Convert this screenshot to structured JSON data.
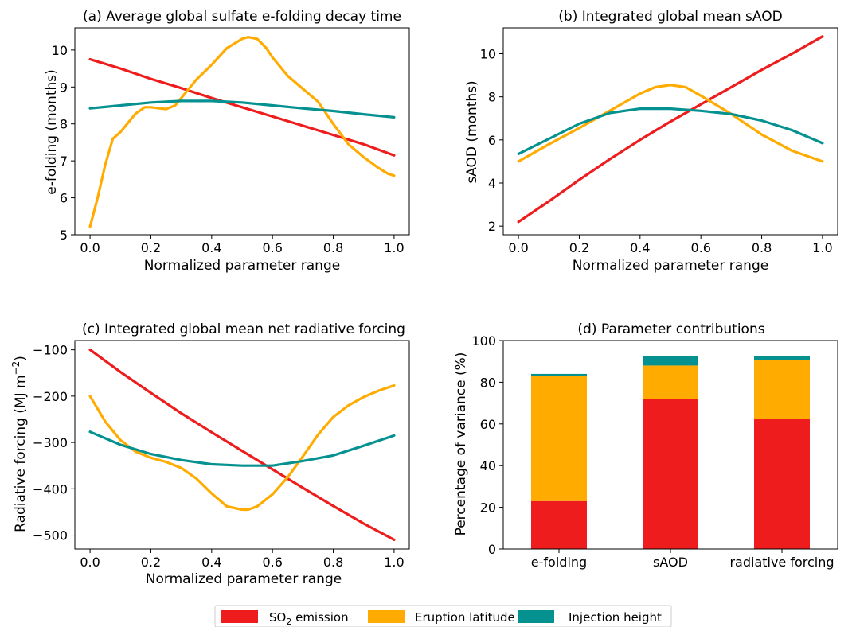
{
  "colors": {
    "so2": "#ee1c1c",
    "latitude": "#ffab00",
    "height": "#069191"
  },
  "legend": {
    "items": [
      {
        "key": "so2",
        "label_main": "SO",
        "label_sub": "2",
        "label_rest": " emission"
      },
      {
        "key": "latitude",
        "label": "Eruption latitude"
      },
      {
        "key": "height",
        "label": "Injection height"
      }
    ],
    "placement": "bottom-center"
  },
  "chart_data": [
    {
      "type": "line",
      "title": "(a) Average global sulfate e-folding decay time",
      "xlabel": "Normalized parameter range",
      "ylabel": "e-folding (months)",
      "xlim": [
        -0.05,
        1.05
      ],
      "ylim": [
        5,
        10.6
      ],
      "xticks": [
        0.0,
        0.2,
        0.4,
        0.6,
        0.8,
        1.0
      ],
      "xtick_labels": [
        "0.0",
        "0.2",
        "0.4",
        "0.6",
        "0.8",
        "1.0"
      ],
      "yticks": [
        5,
        6,
        7,
        8,
        9,
        10
      ],
      "ytick_labels": [
        "5",
        "6",
        "7",
        "8",
        "9",
        "10"
      ],
      "grid": false,
      "series": [
        {
          "key": "so2",
          "x": [
            0.0,
            0.1,
            0.2,
            0.3,
            0.4,
            0.5,
            0.6,
            0.7,
            0.8,
            0.9,
            1.0
          ],
          "y": [
            9.75,
            9.5,
            9.22,
            8.97,
            8.7,
            8.45,
            8.2,
            7.95,
            7.7,
            7.45,
            7.15
          ]
        },
        {
          "key": "latitude",
          "x": [
            0.0,
            0.025,
            0.05,
            0.075,
            0.1,
            0.15,
            0.18,
            0.2,
            0.25,
            0.28,
            0.3,
            0.35,
            0.4,
            0.45,
            0.5,
            0.52,
            0.55,
            0.58,
            0.6,
            0.65,
            0.7,
            0.75,
            0.8,
            0.85,
            0.9,
            0.95,
            0.98,
            1.0
          ],
          "y": [
            5.22,
            6.0,
            6.9,
            7.6,
            7.78,
            8.28,
            8.45,
            8.45,
            8.4,
            8.5,
            8.7,
            9.2,
            9.6,
            10.05,
            10.3,
            10.35,
            10.3,
            10.05,
            9.8,
            9.3,
            8.95,
            8.6,
            8.0,
            7.45,
            7.1,
            6.8,
            6.65,
            6.6
          ]
        },
        {
          "key": "height",
          "x": [
            0.0,
            0.1,
            0.2,
            0.3,
            0.4,
            0.5,
            0.6,
            0.7,
            0.8,
            0.9,
            1.0
          ],
          "y": [
            8.42,
            8.5,
            8.58,
            8.62,
            8.62,
            8.58,
            8.5,
            8.42,
            8.35,
            8.26,
            8.18
          ]
        }
      ]
    },
    {
      "type": "line",
      "title": "(b) Integrated global mean sAOD",
      "xlabel": "Normalized parameter range",
      "ylabel": "sAOD (months)",
      "xlim": [
        -0.05,
        1.05
      ],
      "ylim": [
        1.6,
        11.2
      ],
      "xticks": [
        0.0,
        0.2,
        0.4,
        0.6,
        0.8,
        1.0
      ],
      "xtick_labels": [
        "0.0",
        "0.2",
        "0.4",
        "0.6",
        "0.8",
        "1.0"
      ],
      "yticks": [
        2,
        4,
        6,
        8,
        10
      ],
      "ytick_labels": [
        "2",
        "4",
        "6",
        "8",
        "10"
      ],
      "grid": false,
      "series": [
        {
          "key": "so2",
          "x": [
            0.0,
            0.1,
            0.2,
            0.3,
            0.4,
            0.5,
            0.6,
            0.7,
            0.8,
            0.9,
            1.0
          ],
          "y": [
            2.2,
            3.15,
            4.15,
            5.1,
            6.0,
            6.85,
            7.65,
            8.45,
            9.25,
            10.0,
            10.8
          ]
        },
        {
          "key": "latitude",
          "x": [
            0.0,
            0.1,
            0.2,
            0.3,
            0.4,
            0.45,
            0.5,
            0.55,
            0.6,
            0.7,
            0.8,
            0.9,
            1.0
          ],
          "y": [
            5.0,
            5.8,
            6.55,
            7.35,
            8.15,
            8.45,
            8.55,
            8.45,
            8.05,
            7.2,
            6.25,
            5.5,
            5.0
          ]
        },
        {
          "key": "height",
          "x": [
            0.0,
            0.1,
            0.2,
            0.3,
            0.4,
            0.5,
            0.6,
            0.7,
            0.8,
            0.9,
            1.0
          ],
          "y": [
            5.35,
            6.05,
            6.75,
            7.25,
            7.45,
            7.45,
            7.35,
            7.2,
            6.9,
            6.45,
            5.85
          ]
        }
      ]
    },
    {
      "type": "line",
      "title": "(c) Integrated global mean net radiative forcing",
      "xlabel": "Normalized parameter range",
      "ylabel_main": "Radiative forcing (MJ m",
      "ylabel_sup": "−2",
      "ylabel_end": ")",
      "xlim": [
        -0.05,
        1.05
      ],
      "ylim": [
        -530,
        -80
      ],
      "xticks": [
        0.0,
        0.2,
        0.4,
        0.6,
        0.8,
        1.0
      ],
      "xtick_labels": [
        "0.0",
        "0.2",
        "0.4",
        "0.6",
        "0.8",
        "1.0"
      ],
      "yticks": [
        -500,
        -400,
        -300,
        -200,
        -100
      ],
      "ytick_labels": [
        "−500",
        "−400",
        "−300",
        "−200",
        "−100"
      ],
      "grid": false,
      "series": [
        {
          "key": "so2",
          "x": [
            0.0,
            0.1,
            0.2,
            0.3,
            0.4,
            0.5,
            0.6,
            0.7,
            0.8,
            0.9,
            1.0
          ],
          "y": [
            -100,
            -148,
            -193,
            -237,
            -278,
            -318,
            -358,
            -398,
            -437,
            -475,
            -510
          ]
        },
        {
          "key": "latitude",
          "x": [
            0.0,
            0.05,
            0.1,
            0.15,
            0.2,
            0.25,
            0.3,
            0.35,
            0.4,
            0.45,
            0.5,
            0.52,
            0.55,
            0.6,
            0.65,
            0.7,
            0.75,
            0.8,
            0.85,
            0.9,
            0.95,
            1.0
          ],
          "y": [
            -200,
            -255,
            -295,
            -320,
            -333,
            -342,
            -355,
            -378,
            -410,
            -438,
            -445,
            -445,
            -438,
            -412,
            -375,
            -330,
            -283,
            -245,
            -220,
            -202,
            -188,
            -177
          ]
        },
        {
          "key": "height",
          "x": [
            0.0,
            0.1,
            0.2,
            0.3,
            0.4,
            0.5,
            0.6,
            0.7,
            0.8,
            0.9,
            1.0
          ],
          "y": [
            -277,
            -305,
            -325,
            -338,
            -347,
            -350,
            -350,
            -340,
            -328,
            -307,
            -285
          ]
        }
      ]
    },
    {
      "type": "bar",
      "stacked": true,
      "title": "(d) Parameter contributions",
      "xlabel": "",
      "ylabel": "Percentage of variance (%)",
      "ylim": [
        0,
        100
      ],
      "yticks": [
        0,
        20,
        40,
        60,
        80,
        100
      ],
      "ytick_labels": [
        "0",
        "20",
        "40",
        "60",
        "80",
        "100"
      ],
      "categories": [
        "e-folding",
        "sAOD",
        "radiative forcing"
      ],
      "grid": false,
      "series": [
        {
          "key": "so2",
          "values": [
            23,
            72,
            62.5
          ]
        },
        {
          "key": "latitude",
          "values": [
            60,
            16,
            28
          ]
        },
        {
          "key": "height",
          "values": [
            1,
            4.5,
            2
          ]
        }
      ]
    }
  ]
}
